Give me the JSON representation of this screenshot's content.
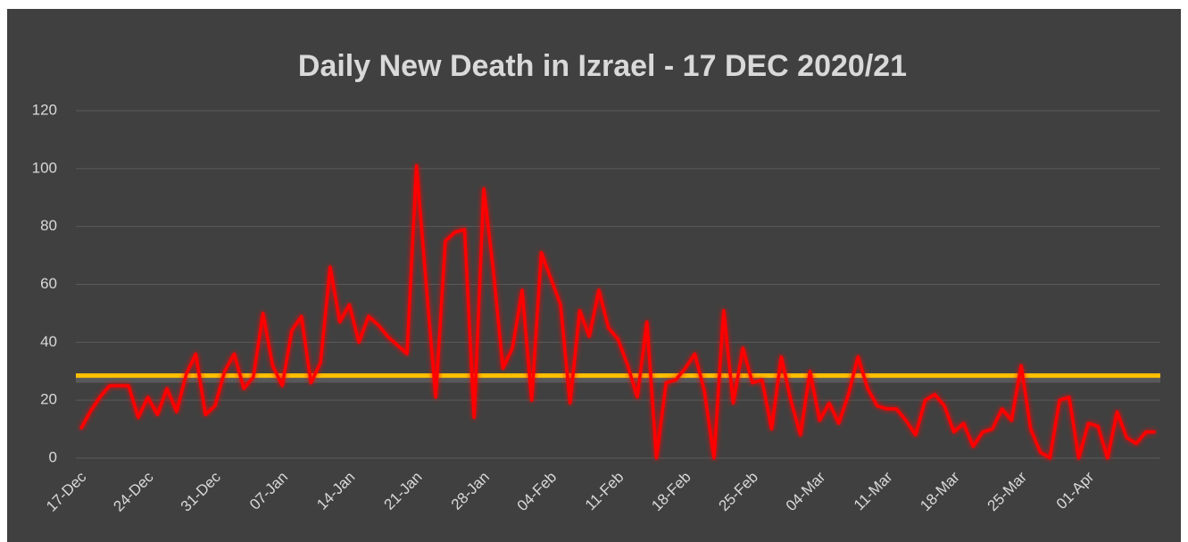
{
  "chart_data": {
    "type": "line",
    "title": "Daily New Death in Izrael - 17 DEC 2020/21",
    "categories": [
      "17-Dec",
      null,
      null,
      null,
      null,
      null,
      null,
      "24-Dec",
      null,
      null,
      null,
      null,
      null,
      null,
      "31-Dec",
      null,
      null,
      null,
      null,
      null,
      null,
      "07-Jan",
      null,
      null,
      null,
      null,
      null,
      null,
      "14-Jan",
      null,
      null,
      null,
      null,
      null,
      null,
      "21-Jan",
      null,
      null,
      null,
      null,
      null,
      null,
      "28-Jan",
      null,
      null,
      null,
      null,
      null,
      null,
      "04-Feb",
      null,
      null,
      null,
      null,
      null,
      null,
      "11-Feb",
      null,
      null,
      null,
      null,
      null,
      null,
      "18-Feb",
      null,
      null,
      null,
      null,
      null,
      null,
      "25-Feb",
      null,
      null,
      null,
      null,
      null,
      null,
      "04-Mar",
      null,
      null,
      null,
      null,
      null,
      null,
      "11-Mar",
      null,
      null,
      null,
      null,
      null,
      null,
      "18-Mar",
      null,
      null,
      null,
      null,
      null,
      null,
      "25-Mar",
      null,
      null,
      null,
      null,
      null,
      null,
      "01-Apr",
      null,
      null,
      null,
      null,
      null,
      null,
      null
    ],
    "series": [
      {
        "color": "#ff0000",
        "values": [
          10,
          16,
          21,
          25,
          25,
          25,
          14,
          21,
          15,
          24,
          16,
          29,
          36,
          15,
          18,
          30,
          36,
          24,
          28,
          50,
          32,
          25,
          44,
          49,
          26,
          33,
          66,
          47,
          53,
          40,
          49,
          46,
          42,
          39,
          36,
          101,
          60,
          21,
          75,
          78,
          79,
          14,
          93,
          65,
          31,
          38,
          58,
          20,
          71,
          62,
          53,
          19,
          51,
          42,
          58,
          45,
          41,
          32,
          21,
          47,
          0,
          26,
          27,
          31,
          36,
          23,
          0,
          51,
          19,
          38,
          26,
          27,
          10,
          35,
          20,
          8,
          30,
          13,
          19,
          12,
          22,
          35,
          24,
          18,
          17,
          17,
          13,
          8,
          20,
          22,
          18,
          9,
          12,
          4,
          9,
          10,
          17,
          13,
          32,
          10,
          2,
          0,
          20,
          21,
          0,
          12,
          11,
          0,
          16,
          7,
          5,
          9,
          9
        ]
      }
    ],
    "reference_line": {
      "value": 28.5,
      "color": "#ffc000"
    },
    "ylim": [
      0,
      120
    ],
    "yticks": [
      0,
      20,
      40,
      60,
      80,
      100,
      120
    ],
    "grid": true
  }
}
